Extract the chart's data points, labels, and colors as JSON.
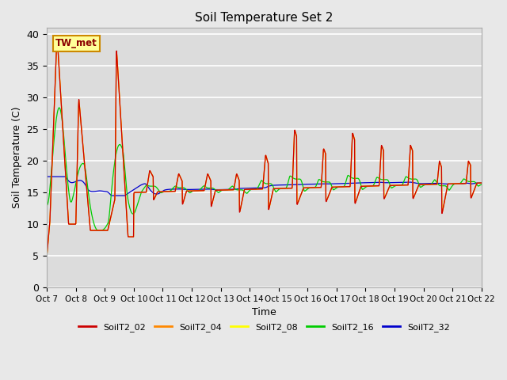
{
  "title": "Soil Temperature Set 2",
  "xlabel": "Time",
  "ylabel": "Soil Temperature (C)",
  "ylim": [
    0,
    41
  ],
  "yticks": [
    0,
    5,
    10,
    15,
    20,
    25,
    30,
    35,
    40
  ],
  "series_colors": {
    "SoilT2_02": "#cc0000",
    "SoilT2_04": "#ff8800",
    "SoilT2_08": "#ffff00",
    "SoilT2_16": "#00cc00",
    "SoilT2_32": "#0000cc"
  },
  "series_order": [
    "SoilT2_32",
    "SoilT2_16",
    "SoilT2_08",
    "SoilT2_04",
    "SoilT2_02"
  ],
  "legend_order": [
    "SoilT2_02",
    "SoilT2_04",
    "SoilT2_08",
    "SoilT2_16",
    "SoilT2_32"
  ],
  "background_color": "#e8e8e8",
  "plot_bg_color": "#dcdcdc",
  "annotation_text": "TW_met",
  "annotation_bbox_face": "#ffff99",
  "annotation_bbox_edge": "#cc8800",
  "x_tick_labels": [
    "Oct 7",
    "Oct 8",
    "Oct 9",
    "Oct 10",
    "Oct 11",
    "Oct 12",
    "Oct 13",
    "Oct 14",
    "Oct 15",
    "Oct 16",
    "Oct 17",
    "Oct 18",
    "Oct 19",
    "Oct 20",
    "Oct 21",
    "Oct 22"
  ],
  "num_days": 15,
  "pts_per_day": 96,
  "figsize": [
    6.4,
    4.8
  ],
  "dpi": 100
}
